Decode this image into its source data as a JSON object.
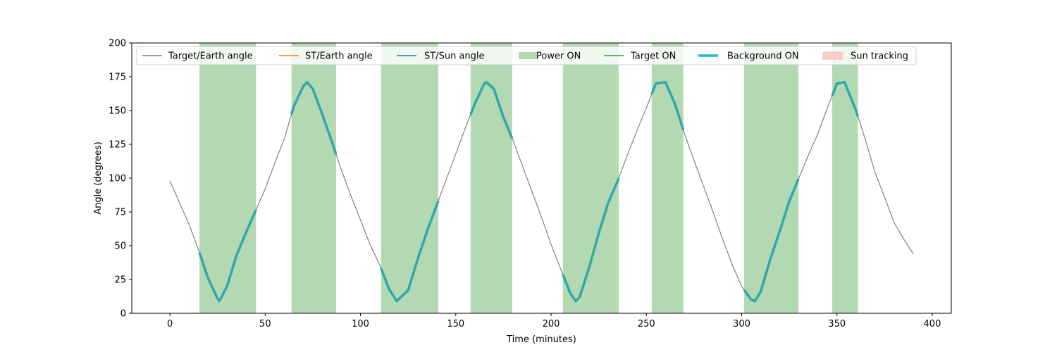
{
  "chart_data": {
    "type": "line",
    "title": "",
    "xlabel": "Time (minutes)",
    "ylabel": "Angle (degrees)",
    "xlim": [
      -20,
      410
    ],
    "ylim": [
      0,
      200
    ],
    "xticks": [
      0,
      50,
      100,
      150,
      200,
      250,
      300,
      350,
      400
    ],
    "yticks": [
      0,
      25,
      50,
      75,
      100,
      125,
      150,
      175,
      200
    ],
    "grid": false,
    "legend_position": "top (single row, upper left)",
    "colors": {
      "target_earth": "#808080",
      "st_earth": "#ff7f0e",
      "st_sun": "#1f77b4",
      "power_on": "#b3d9b3",
      "target_on": "#2ca02c",
      "background_on": "#2ea8a8",
      "background_legend": "#17becf",
      "sun_tracking": "#f9d3d0"
    },
    "legend": [
      {
        "label": "Target/Earth angle",
        "kind": "line",
        "color": "#808080"
      },
      {
        "label": "ST/Earth angle",
        "kind": "line",
        "color": "#ff7f0e"
      },
      {
        "label": "ST/Sun angle",
        "kind": "line",
        "color": "#1f77b4"
      },
      {
        "label": "Power ON",
        "kind": "patch",
        "color": "#b3d9b3"
      },
      {
        "label": "Target ON",
        "kind": "line",
        "color": "#2ca02c"
      },
      {
        "label": "Background ON",
        "kind": "thickline",
        "color": "#17becf"
      },
      {
        "label": "Sun tracking",
        "kind": "hatch",
        "color": "#f9d3d0"
      }
    ],
    "power_on_intervals": [
      [
        15.5,
        45.2
      ],
      [
        63.8,
        87.2
      ],
      [
        110.8,
        140.8
      ],
      [
        157.8,
        179.6
      ],
      [
        206.2,
        235.5
      ],
      [
        252.8,
        269.4
      ],
      [
        301.3,
        329.8
      ],
      [
        347.5,
        361
      ]
    ],
    "target_earth_curve": {
      "x": [
        0,
        5,
        10,
        15,
        20,
        25,
        26,
        30,
        35,
        40,
        45,
        50,
        55,
        60,
        65,
        70,
        72,
        75,
        80,
        85,
        90,
        95,
        100,
        105,
        110,
        115,
        119,
        125,
        130,
        135,
        140,
        145,
        150,
        155,
        160,
        165,
        166,
        170,
        175,
        180,
        185,
        190,
        195,
        200,
        205,
        210,
        213,
        215,
        220,
        225,
        230,
        235,
        240,
        245,
        250,
        255,
        260,
        265,
        270,
        275,
        280,
        285,
        290,
        295,
        300,
        305,
        307,
        310,
        315,
        320,
        325,
        330,
        335,
        340,
        345,
        350,
        354,
        360,
        365,
        370,
        375,
        380,
        385,
        390
      ],
      "y": [
        98,
        82,
        66,
        47,
        26,
        11,
        9,
        20,
        43,
        60,
        76,
        92,
        111,
        129,
        153,
        168,
        171,
        166,
        147,
        127,
        106,
        87,
        69,
        51,
        36,
        18,
        9,
        17,
        40,
        61,
        80,
        99,
        118,
        137,
        155,
        170,
        171,
        166,
        145,
        128,
        109,
        90,
        71,
        51,
        33,
        15,
        9,
        12,
        34,
        59,
        82,
        98,
        117,
        135,
        152,
        170,
        171,
        155,
        133,
        113,
        94,
        75,
        55,
        36,
        20,
        10,
        9,
        16,
        40,
        61,
        83,
        100,
        117,
        133,
        152,
        170,
        171,
        150,
        128,
        104,
        86,
        67,
        55,
        44
      ]
    }
  }
}
